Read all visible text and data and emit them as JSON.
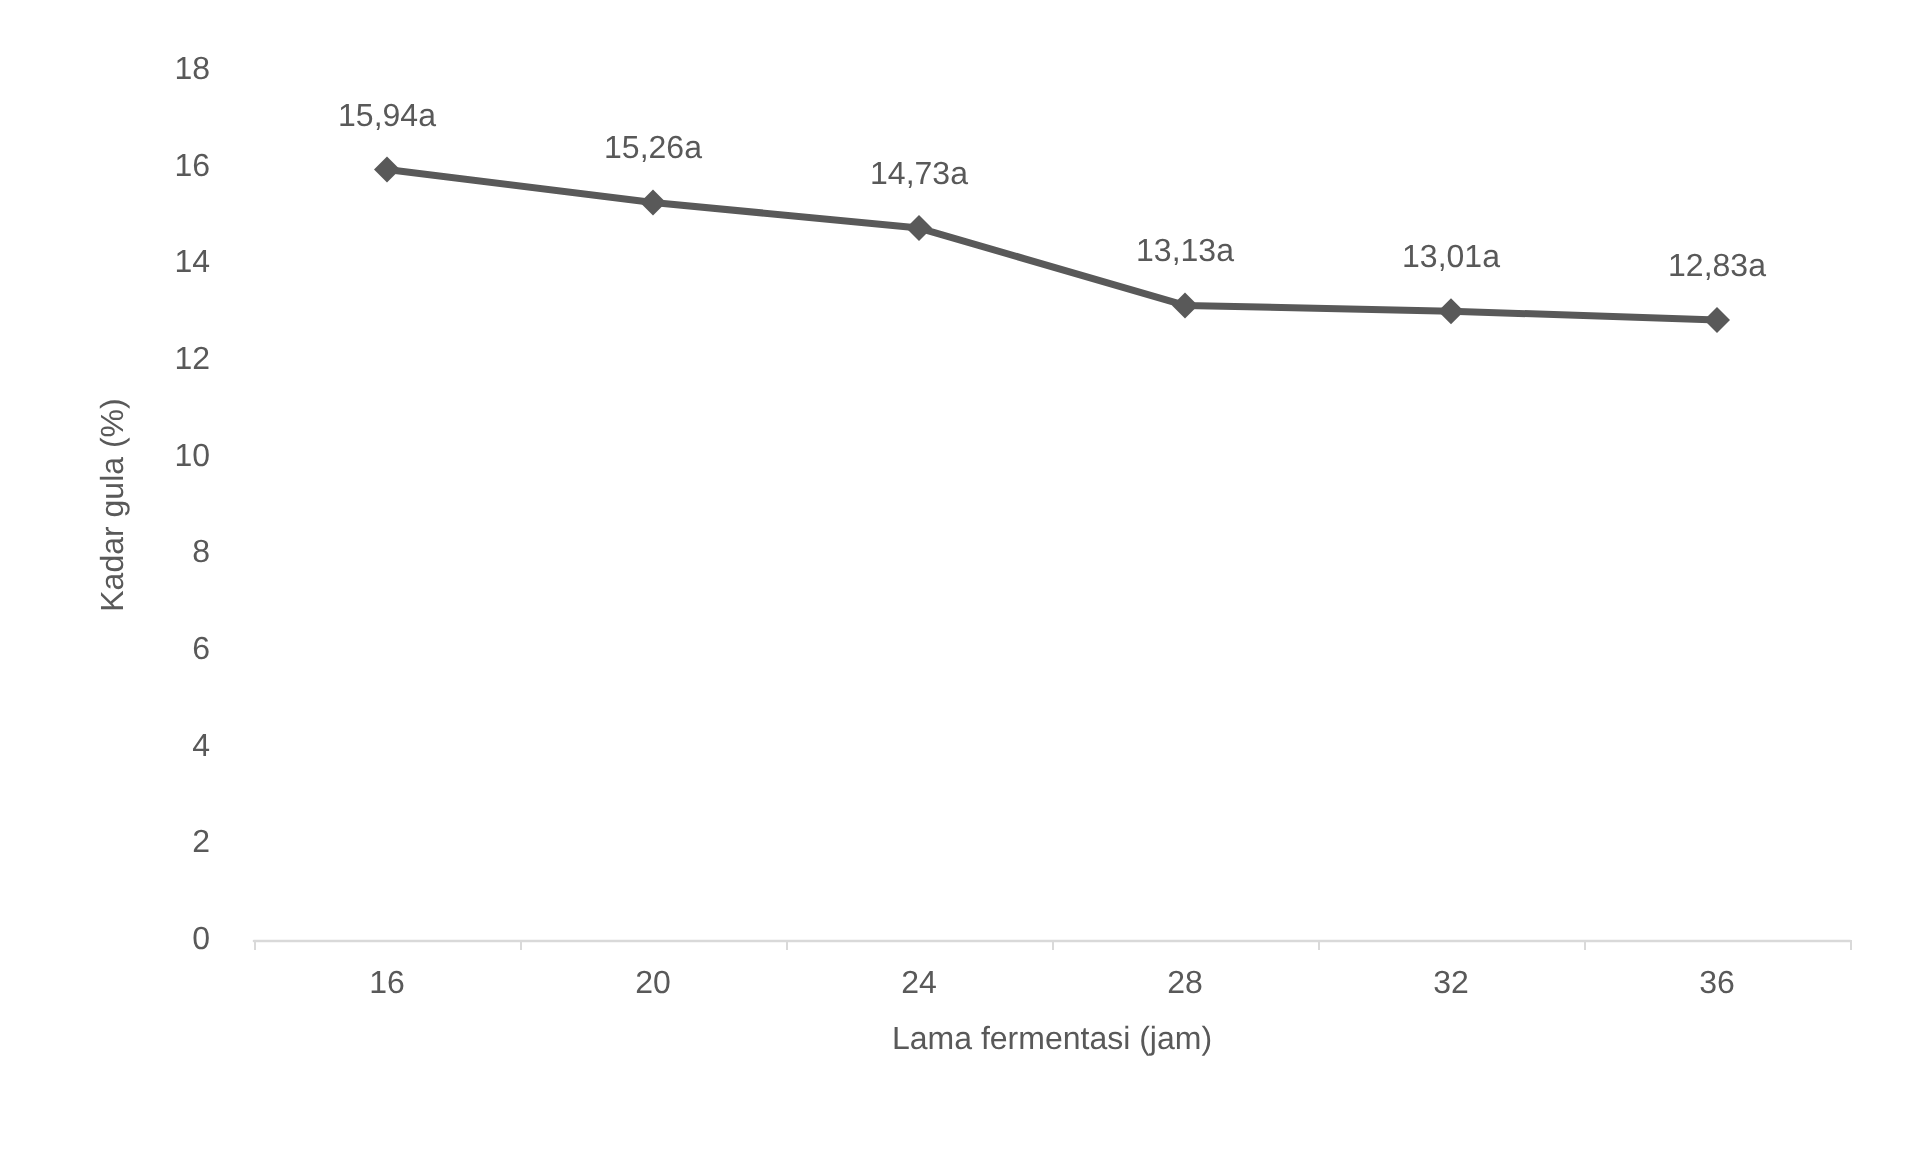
{
  "chart_data": {
    "type": "line",
    "xlabel": "Lama fermentasi (jam)",
    "ylabel": "Kadar gula (%)",
    "categories": [
      "16",
      "20",
      "24",
      "28",
      "32",
      "36"
    ],
    "series": [
      {
        "color": "#595959",
        "values": [
          15.94,
          15.26,
          14.73,
          13.13,
          13.01,
          12.83
        ],
        "value_labels": [
          "15,94a",
          "15,26a",
          "14,73a",
          "13,13a",
          "13,01a",
          "12,83a"
        ]
      }
    ],
    "ylim": [
      0,
      18
    ],
    "yticks": [
      0,
      2,
      4,
      6,
      8,
      10,
      12,
      14,
      16,
      18
    ],
    "marker": "diamond",
    "line_style": "solid"
  }
}
